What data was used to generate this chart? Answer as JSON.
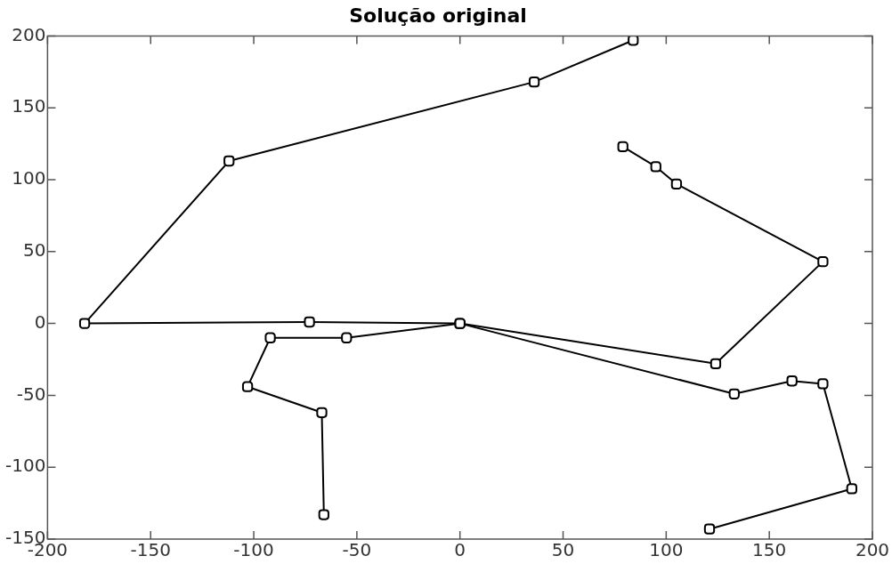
{
  "chart_data": {
    "type": "line",
    "title": "Solução original",
    "marker": "square",
    "grid": false,
    "line_style": "solid",
    "xlim": [
      -200,
      200
    ],
    "xticks": [
      -200,
      -150,
      -100,
      -50,
      0,
      50,
      100,
      150,
      200
    ],
    "ylim": [
      -150,
      200
    ],
    "yticks": [
      -150,
      -100,
      -50,
      0,
      50,
      100,
      150,
      200
    ],
    "series": [
      {
        "color": "#000000",
        "x": [
          84,
          36,
          -112,
          -182,
          -73,
          0,
          124,
          176,
          105,
          95,
          79
        ],
        "values": [
          197,
          168,
          113,
          0,
          1,
          0,
          -28,
          43,
          97,
          109,
          123
        ]
      },
      {
        "color": "#000000",
        "x": [
          -66,
          -67,
          -103,
          -92,
          -55,
          0,
          133,
          161,
          176,
          190,
          121
        ],
        "values": [
          -133,
          -62,
          -44,
          -10,
          -10,
          0,
          -49,
          -40,
          -42,
          -115,
          -143
        ]
      }
    ]
  }
}
